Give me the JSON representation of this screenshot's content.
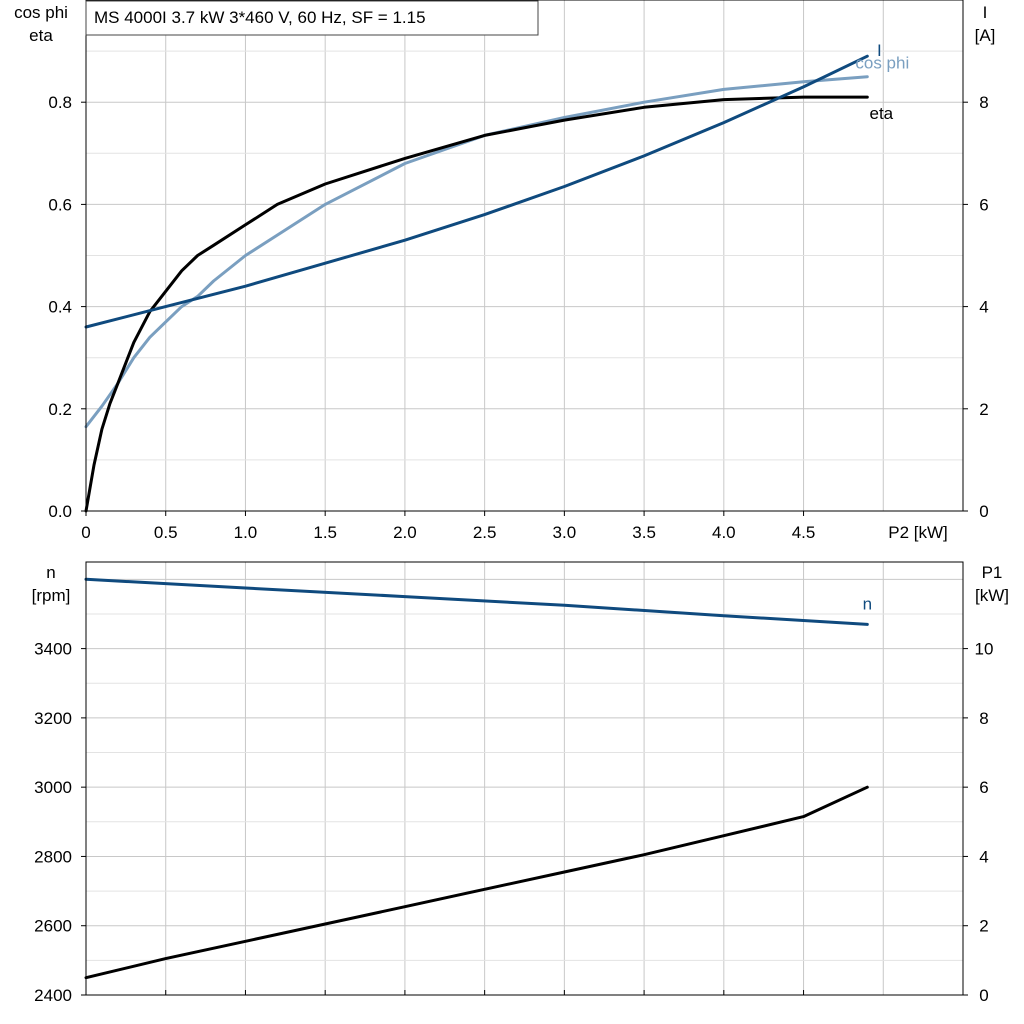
{
  "title": "MS 4000I   3.7 kW   3*460 V, 60 Hz, SF = 1.15",
  "colors": {
    "eta": "#000000",
    "cos_phi": "#7a9fc0",
    "current": "#0f4a7e",
    "speed": "#0f4a7e",
    "p1": "#000000",
    "grid": "#c8c8c8"
  },
  "chart_data": [
    {
      "type": "line",
      "panel": "top",
      "xlabel": "P2 [kW]",
      "ylabel_left": [
        "cos phi",
        "eta"
      ],
      "ylabel_right": [
        "I",
        "[A]"
      ],
      "xlim": [
        0,
        5.5
      ],
      "ylim_left": [
        0,
        1.0
      ],
      "ylim_right": [
        0,
        10
      ],
      "xticks": [
        "0",
        "0.5",
        "1.0",
        "1.5",
        "2.0",
        "2.5",
        "3.0",
        "3.5",
        "4.0",
        "4.5"
      ],
      "yticks_left": [
        "0.0",
        "0.2",
        "0.4",
        "0.6",
        "0.8"
      ],
      "yticks_right": [
        "0",
        "2",
        "4",
        "6",
        "8"
      ],
      "grid": true,
      "series": [
        {
          "name": "eta",
          "axis": "left",
          "x": [
            0,
            0.05,
            0.1,
            0.15,
            0.2,
            0.3,
            0.4,
            0.5,
            0.6,
            0.7,
            0.8,
            1.0,
            1.2,
            1.5,
            2.0,
            2.5,
            3.0,
            3.5,
            4.0,
            4.5,
            4.9
          ],
          "y": [
            0,
            0.09,
            0.16,
            0.21,
            0.25,
            0.33,
            0.39,
            0.43,
            0.47,
            0.5,
            0.52,
            0.56,
            0.6,
            0.64,
            0.69,
            0.735,
            0.765,
            0.79,
            0.805,
            0.81,
            0.81
          ]
        },
        {
          "name": "cos phi",
          "axis": "left",
          "x": [
            0,
            0.1,
            0.2,
            0.3,
            0.4,
            0.5,
            0.6,
            0.7,
            0.8,
            1.0,
            1.2,
            1.5,
            2.0,
            2.5,
            3.0,
            3.5,
            4.0,
            4.5,
            4.9
          ],
          "y": [
            0.165,
            0.205,
            0.25,
            0.3,
            0.34,
            0.37,
            0.4,
            0.42,
            0.45,
            0.5,
            0.54,
            0.6,
            0.68,
            0.735,
            0.77,
            0.8,
            0.825,
            0.84,
            0.85
          ]
        },
        {
          "name": "I",
          "axis": "right",
          "x": [
            0,
            0.5,
            1.0,
            1.5,
            2.0,
            2.5,
            3.0,
            3.5,
            4.0,
            4.5,
            4.9
          ],
          "y": [
            3.6,
            4.0,
            4.4,
            4.85,
            5.3,
            5.8,
            6.35,
            6.95,
            7.6,
            8.3,
            8.9
          ]
        }
      ]
    },
    {
      "type": "line",
      "panel": "bottom",
      "xlim": [
        0,
        5.5
      ],
      "ylim_left": [
        2400,
        3650
      ],
      "ylim_right": [
        0,
        12.5
      ],
      "ylabel_left": [
        "n",
        "[rpm]"
      ],
      "ylabel_right": [
        "P1",
        "[kW]"
      ],
      "yticks_left": [
        "2400",
        "2600",
        "2800",
        "3000",
        "3200",
        "3400"
      ],
      "yticks_right": [
        "0",
        "2",
        "4",
        "6",
        "8",
        "10"
      ],
      "grid": true,
      "series": [
        {
          "name": "n",
          "axis": "left",
          "x": [
            0,
            1.0,
            2.0,
            3.0,
            4.0,
            4.9
          ],
          "y": [
            3600,
            3575,
            3550,
            3525,
            3495,
            3470
          ]
        },
        {
          "name": "",
          "axis": "right",
          "x": [
            0,
            0.5,
            1.0,
            1.5,
            2.0,
            2.5,
            3.0,
            3.5,
            4.0,
            4.5,
            4.9
          ],
          "y": [
            0.5,
            1.05,
            1.55,
            2.05,
            2.55,
            3.05,
            3.55,
            4.05,
            4.6,
            5.15,
            6.0
          ]
        }
      ]
    }
  ]
}
